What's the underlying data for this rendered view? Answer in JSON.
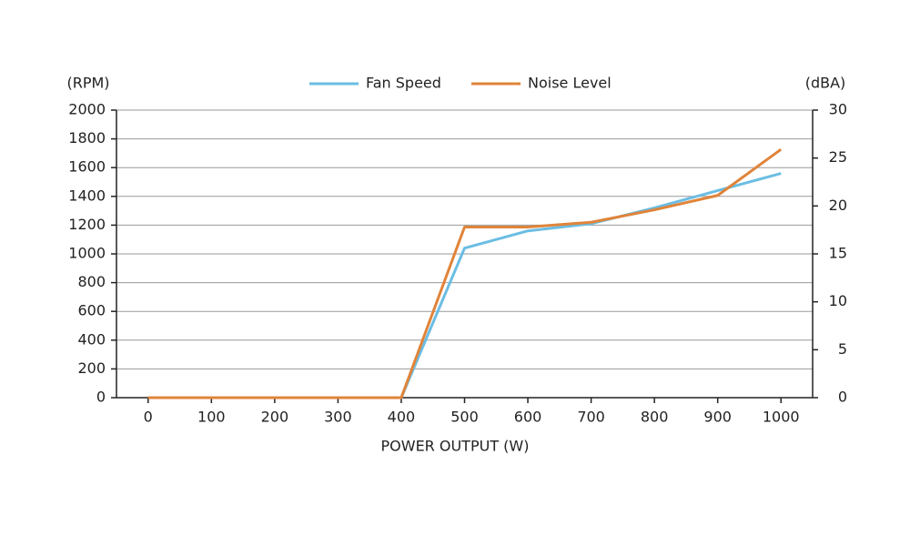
{
  "chart_data": {
    "type": "line",
    "x_label": "POWER OUTPUT (W)",
    "y_label": "(RPM)",
    "y2_label": "(dBA)",
    "x": [
      0,
      100,
      200,
      300,
      400,
      500,
      600,
      700,
      800,
      900,
      1000
    ],
    "xlim": [
      -50,
      1050
    ],
    "xticks": [
      0,
      100,
      200,
      300,
      400,
      500,
      600,
      700,
      800,
      900,
      1000
    ],
    "ylim": [
      0,
      2000
    ],
    "yticks": [
      0,
      200,
      400,
      600,
      800,
      1000,
      1200,
      1400,
      1600,
      1800,
      2000
    ],
    "y2lim": [
      0,
      30
    ],
    "y2ticks": [
      0,
      5,
      10,
      15,
      20,
      25,
      30
    ],
    "grid": true,
    "legend": "top",
    "series": [
      {
        "name": "Fan Speed",
        "color": "#6bbde3",
        "values": [
          0,
          0,
          0,
          0,
          0,
          1040,
          1160,
          1210,
          1320,
          1440,
          1560
        ]
      },
      {
        "name": "Noise Level",
        "color": "#e0843a",
        "axis": "y2",
        "values": [
          0,
          0,
          0,
          0,
          0,
          17.8,
          17.8,
          18.3,
          19.6,
          21.1,
          25.9
        ]
      }
    ]
  }
}
